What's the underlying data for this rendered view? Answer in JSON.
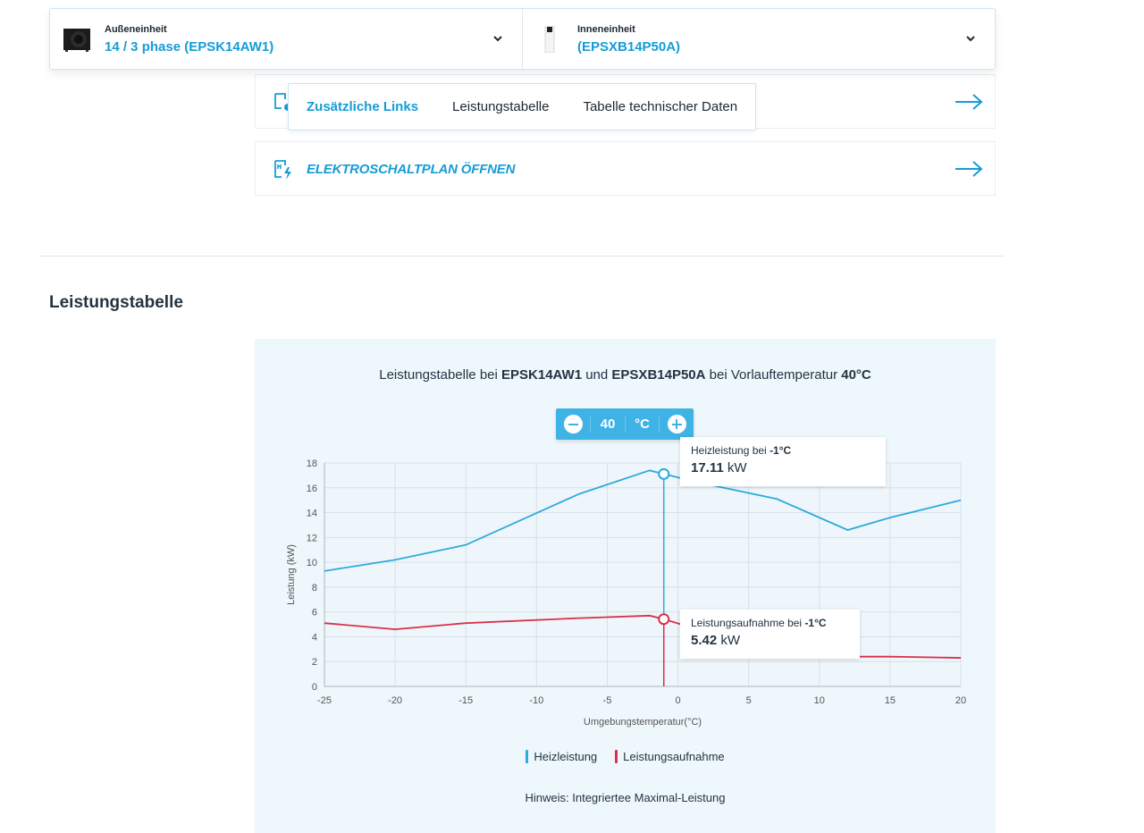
{
  "units": {
    "outdoor": {
      "label": "Außeneinheit",
      "value": "14 / 3 phase (EPSK14AW1)"
    },
    "indoor": {
      "label": "Inneneinheit",
      "value": "(EPSXB14P50A)"
    }
  },
  "tabs": [
    {
      "label": "Zusätzliche Links",
      "active": true
    },
    {
      "label": "Leistungstabelle",
      "active": false
    },
    {
      "label": "Tabelle technischer Daten",
      "active": false
    }
  ],
  "links": {
    "electro": "ELEKTROSCHALTPLAN ÖFFNEN"
  },
  "section": {
    "title": "Leistungstabelle"
  },
  "chart_header": {
    "prefix": "Leistungstabelle bei ",
    "outdoor": "EPSK14AW1",
    "mid": " und ",
    "indoor": "EPSXB14P50A",
    "suffix": " bei Vorlauftemperatur ",
    "temp": "40°C"
  },
  "temp_control": {
    "value": "40",
    "unit": "°C"
  },
  "tooltips": {
    "heat": {
      "label": "Heizleistung bei ",
      "temp": "-1°C",
      "value": "17.11",
      "unit": "kW"
    },
    "power": {
      "label": "Leistungsaufnahme bei ",
      "temp": "-1°C",
      "value": "5.42",
      "unit": "kW"
    }
  },
  "legend": {
    "heat": "Heizleistung",
    "power": "Leistungsaufnahme"
  },
  "note": "Hinweis: Integriertee Maximal-Leistung",
  "colors": {
    "accent": "#159cd8",
    "heat": "#2eaadc",
    "power": "#d9304b",
    "panel": "#edf7fc"
  },
  "chart_data": {
    "type": "line",
    "xlabel": "Umgebungstemperatur(°C)",
    "ylabel": "Leistung (kW)",
    "xlim": [
      -25,
      20
    ],
    "ylim": [
      0,
      18
    ],
    "xticks": [
      -25,
      -20,
      -15,
      -10,
      -5,
      0,
      5,
      10,
      15,
      20
    ],
    "yticks": [
      0,
      2,
      4,
      6,
      8,
      10,
      12,
      14,
      16,
      18
    ],
    "grid": true,
    "legend": "bottom",
    "highlight_x": -1,
    "series": [
      {
        "name": "Heizleistung",
        "color": "#2eaadc",
        "x": [
          -25,
          -20,
          -15,
          -7,
          -2,
          -1,
          2,
          7,
          12,
          15,
          20
        ],
        "y": [
          9.3,
          10.2,
          11.4,
          15.5,
          17.4,
          17.11,
          16.3,
          15.1,
          12.6,
          13.6,
          15.0
        ]
      },
      {
        "name": "Leistungsaufnahme",
        "color": "#d9304b",
        "x": [
          -25,
          -20,
          -15,
          -7,
          -2,
          -1,
          2,
          7,
          12,
          15,
          20
        ],
        "y": [
          5.1,
          4.6,
          5.1,
          5.5,
          5.7,
          5.42,
          4.4,
          3.5,
          2.4,
          2.4,
          2.3
        ]
      }
    ]
  }
}
